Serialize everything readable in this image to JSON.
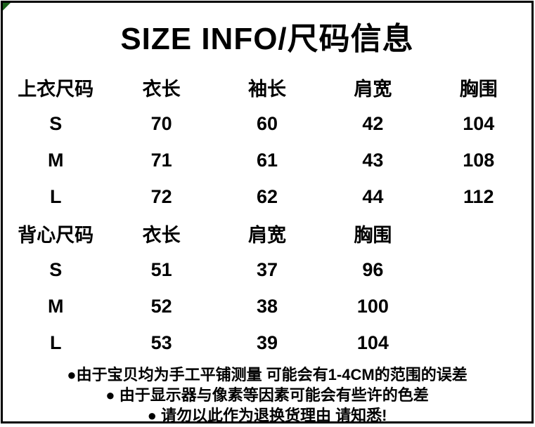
{
  "title": "SIZE INFO/尺码信息",
  "colors": {
    "text": "#000000",
    "background": "#ffffff",
    "frame_border": "#000000",
    "corner_accent": "#1e651e"
  },
  "tables": [
    {
      "name": "上衣尺码",
      "header": [
        "上衣尺码",
        "衣长",
        "袖长",
        "肩宽",
        "胸围"
      ],
      "rows": [
        [
          "S",
          "70",
          "60",
          "42",
          "104"
        ],
        [
          "M",
          "71",
          "61",
          "43",
          "108"
        ],
        [
          "L",
          "72",
          "62",
          "44",
          "112"
        ]
      ]
    },
    {
      "name": "背心尺码",
      "header": [
        "背心尺码",
        "衣长",
        "肩宽",
        "胸围",
        ""
      ],
      "rows": [
        [
          "S",
          "51",
          "37",
          "96",
          ""
        ],
        [
          "M",
          "52",
          "38",
          "100",
          ""
        ],
        [
          "L",
          "53",
          "39",
          "104",
          ""
        ]
      ]
    }
  ],
  "notes": [
    "●由于宝贝均为手工平铺测量 可能会有1-4CM的范围的误差",
    "● 由于显示器与像素等因素可能会有些许的色差",
    "● 请勿以此作为退换货理由 请知悉!"
  ]
}
